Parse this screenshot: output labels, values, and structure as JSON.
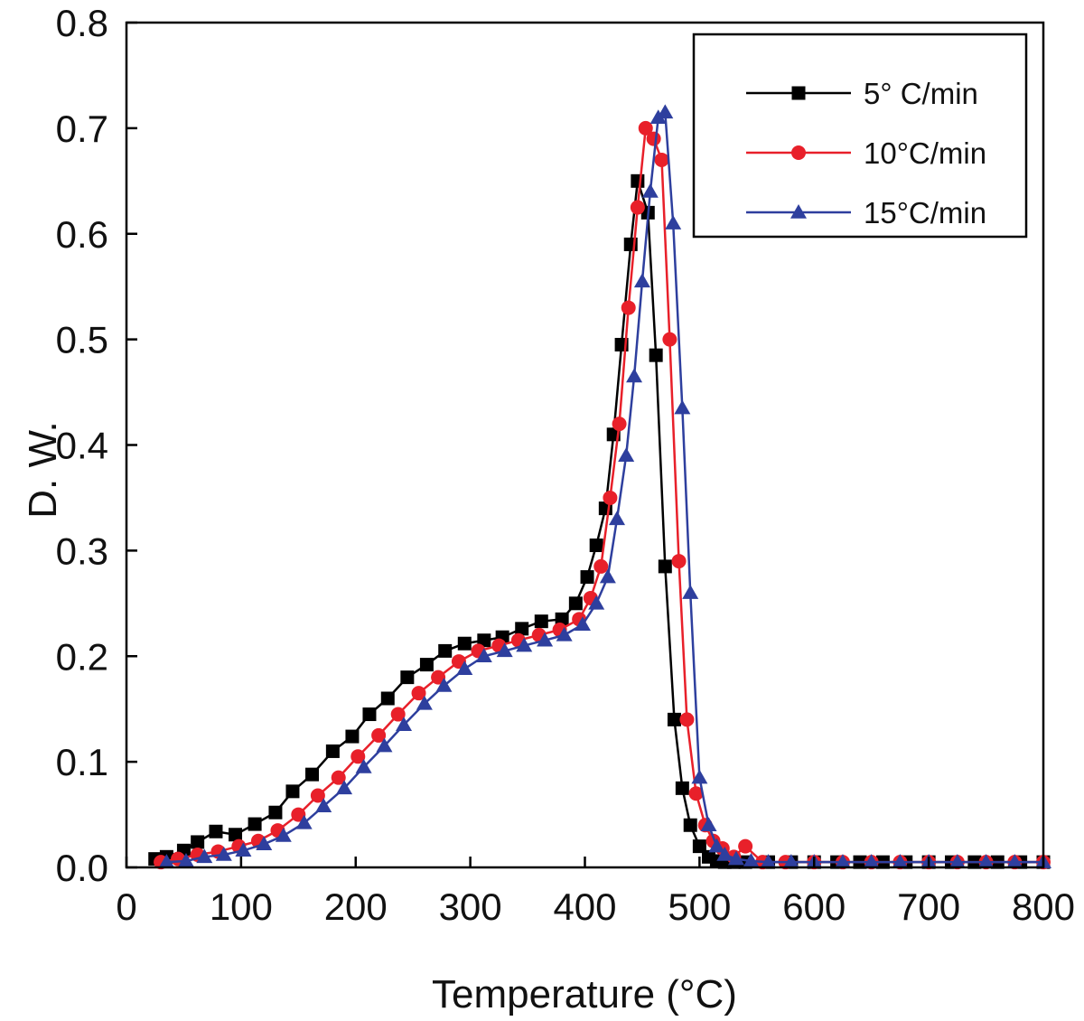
{
  "chart_data": {
    "type": "line",
    "xlabel": "Temperature (°C)",
    "ylabel": "D. W.",
    "xlim": [
      0,
      800
    ],
    "ylim": [
      0.0,
      0.8
    ],
    "xticks": [
      0,
      100,
      200,
      300,
      400,
      500,
      600,
      700,
      800
    ],
    "yticks": [
      0.0,
      0.1,
      0.2,
      0.3,
      0.4,
      0.5,
      0.6,
      0.7,
      0.8
    ],
    "ytick_labels": [
      "0.0",
      "0.1",
      "0.2",
      "0.3",
      "0.4",
      "0.5",
      "0.6",
      "0.7",
      "0.8"
    ],
    "grid": false,
    "legend_position": "top-right",
    "series": [
      {
        "name": "5° C/min",
        "color": "#000000",
        "marker": "square",
        "x": [
          25,
          35,
          50,
          62,
          78,
          95,
          112,
          130,
          145,
          162,
          180,
          197,
          212,
          228,
          245,
          262,
          278,
          295,
          312,
          328,
          345,
          362,
          380,
          392,
          402,
          410,
          418,
          425,
          432,
          440,
          446,
          455,
          462,
          470,
          478,
          485,
          492,
          500,
          508,
          515,
          522,
          530,
          540,
          560,
          580,
          600,
          620,
          640,
          660,
          680,
          700,
          720,
          740,
          760,
          780,
          800
        ],
        "y": [
          0.008,
          0.01,
          0.016,
          0.024,
          0.034,
          0.031,
          0.041,
          0.052,
          0.072,
          0.088,
          0.11,
          0.124,
          0.145,
          0.16,
          0.18,
          0.192,
          0.205,
          0.212,
          0.215,
          0.218,
          0.226,
          0.233,
          0.235,
          0.25,
          0.275,
          0.305,
          0.34,
          0.41,
          0.495,
          0.59,
          0.65,
          0.62,
          0.485,
          0.285,
          0.14,
          0.075,
          0.04,
          0.02,
          0.01,
          0.006,
          0.005,
          0.005,
          0.005,
          0.005,
          0.005,
          0.005,
          0.005,
          0.005,
          0.005,
          0.005,
          0.005,
          0.005,
          0.005,
          0.005,
          0.005,
          0.005
        ]
      },
      {
        "name": "10°C/min",
        "color": "#e8202a",
        "marker": "circle",
        "x": [
          30,
          45,
          62,
          80,
          98,
          115,
          132,
          150,
          167,
          185,
          202,
          220,
          237,
          255,
          272,
          290,
          307,
          325,
          342,
          360,
          378,
          395,
          405,
          414,
          422,
          430,
          438,
          446,
          453,
          460,
          467,
          474,
          482,
          489,
          497,
          505,
          512,
          520,
          530,
          540,
          555,
          575,
          600,
          625,
          650,
          675,
          700,
          725,
          750,
          775,
          800
        ],
        "y": [
          0.005,
          0.008,
          0.012,
          0.015,
          0.02,
          0.025,
          0.035,
          0.05,
          0.068,
          0.085,
          0.105,
          0.125,
          0.145,
          0.165,
          0.18,
          0.195,
          0.205,
          0.21,
          0.215,
          0.22,
          0.225,
          0.235,
          0.255,
          0.285,
          0.35,
          0.42,
          0.53,
          0.625,
          0.7,
          0.69,
          0.67,
          0.5,
          0.29,
          0.14,
          0.07,
          0.04,
          0.025,
          0.018,
          0.01,
          0.02,
          0.005,
          0.005,
          0.005,
          0.005,
          0.005,
          0.005,
          0.005,
          0.005,
          0.005,
          0.005,
          0.005
        ]
      },
      {
        "name": "15°C/min",
        "color": "#2e3f9e",
        "marker": "triangle",
        "x": [
          35,
          52,
          68,
          85,
          102,
          120,
          137,
          155,
          172,
          190,
          207,
          225,
          242,
          260,
          277,
          295,
          312,
          330,
          347,
          365,
          382,
          398,
          410,
          420,
          428,
          436,
          443,
          450,
          457,
          464,
          470,
          477,
          485,
          492,
          500,
          508,
          515,
          522,
          532,
          545,
          560,
          580,
          600,
          625,
          650,
          675,
          700,
          725,
          750,
          775,
          800
        ],
        "y": [
          0.005,
          0.006,
          0.01,
          0.012,
          0.016,
          0.022,
          0.03,
          0.042,
          0.058,
          0.075,
          0.095,
          0.115,
          0.135,
          0.155,
          0.172,
          0.188,
          0.2,
          0.205,
          0.21,
          0.215,
          0.22,
          0.23,
          0.25,
          0.275,
          0.33,
          0.39,
          0.465,
          0.555,
          0.64,
          0.71,
          0.715,
          0.61,
          0.435,
          0.26,
          0.085,
          0.04,
          0.02,
          0.012,
          0.008,
          0.006,
          0.005,
          0.005,
          0.005,
          0.005,
          0.005,
          0.005,
          0.005,
          0.005,
          0.005,
          0.005,
          0.005
        ]
      }
    ]
  }
}
